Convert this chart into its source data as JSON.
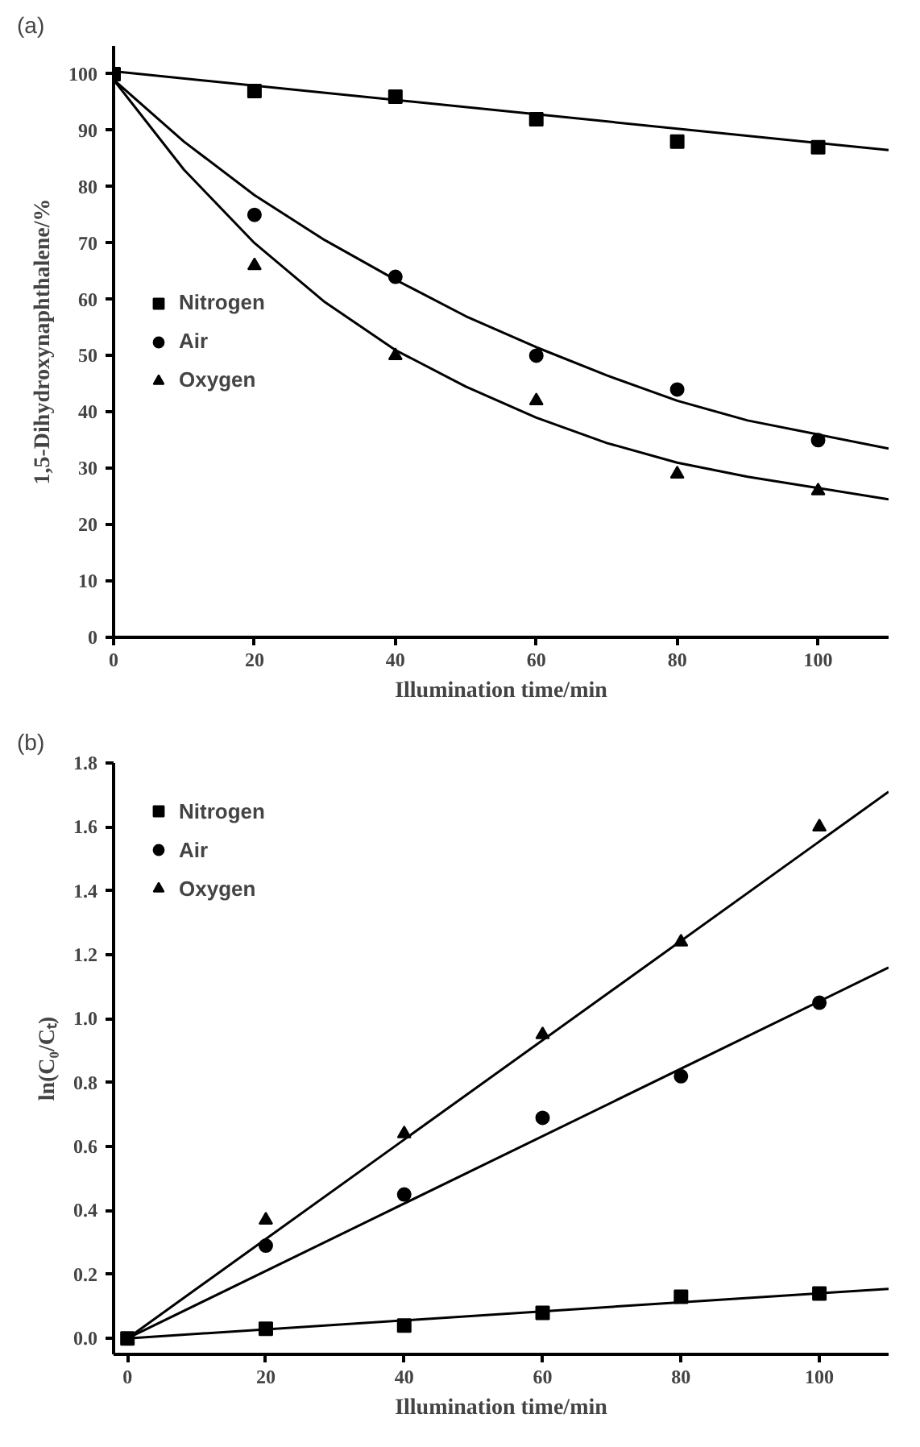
{
  "chart_data": [
    {
      "type": "scatter",
      "annotations": [
        "(a)"
      ],
      "xlabel": "Illumination time/min",
      "ylabel": "1,5-Dihydroxynaphthalene/%",
      "xlim": [
        0,
        110
      ],
      "ylim": [
        0,
        105
      ],
      "xticks": [
        0,
        20,
        40,
        60,
        80,
        100
      ],
      "yticks": [
        0,
        10,
        20,
        30,
        40,
        50,
        60,
        70,
        80,
        90,
        100
      ],
      "grid": false,
      "legend": "left",
      "series": [
        {
          "name": "Nitrogen",
          "color": "#000000",
          "marker": "square",
          "x": [
            0,
            20,
            40,
            60,
            80,
            100
          ],
          "values": [
            100,
            97,
            96,
            92,
            88,
            87
          ]
        },
        {
          "name": "Air",
          "color": "#000000",
          "marker": "circle",
          "x": [
            20,
            40,
            60,
            80,
            100
          ],
          "values": [
            75,
            64,
            50,
            44,
            35
          ]
        },
        {
          "name": "Oxygen",
          "color": "#000000",
          "marker": "triangle",
          "x": [
            20,
            40,
            60,
            80,
            100
          ],
          "values": [
            66,
            50,
            42,
            29,
            26
          ]
        },
        {
          "type": "line",
          "color": "#000000",
          "marker": "none",
          "x": [
            0,
            110
          ],
          "values": [
            100.5,
            86.5
          ]
        },
        {
          "type": "line",
          "color": "#000000",
          "marker": "none",
          "x": [
            0,
            10,
            20,
            30,
            40,
            50,
            60,
            70,
            80,
            90,
            100,
            110
          ],
          "values": [
            99,
            88,
            78.5,
            70.5,
            63.5,
            57,
            51.5,
            46.5,
            42,
            38.5,
            36,
            33.5
          ]
        },
        {
          "type": "line",
          "color": "#000000",
          "marker": "none",
          "x": [
            0,
            10,
            20,
            30,
            40,
            50,
            60,
            70,
            80,
            90,
            100,
            110
          ],
          "values": [
            99,
            83,
            70,
            59.5,
            51,
            44.5,
            39,
            34.5,
            31,
            28.5,
            26.5,
            24.5
          ]
        }
      ]
    },
    {
      "type": "scatter",
      "annotations": [
        "(b)"
      ],
      "xlabel": "Illumination time/min",
      "ylabel": "ln(C₀/Cₜ)",
      "xlim": [
        -2,
        110
      ],
      "ylim": [
        -0.05,
        1.8
      ],
      "xticks": [
        0,
        20,
        40,
        60,
        80,
        100
      ],
      "yticks": [
        {
          "value": 0,
          "label": "0.0"
        },
        0.2,
        0.4,
        0.6,
        0.8,
        {
          "value": 1,
          "label": "1.0"
        },
        1.2,
        1.4,
        1.6,
        1.8
      ],
      "grid": false,
      "legend": "top left",
      "series": [
        {
          "name": "Nitrogen",
          "color": "#000000",
          "marker": "square",
          "x": [
            0,
            20,
            40,
            60,
            80,
            100
          ],
          "values": [
            0,
            0.03,
            0.04,
            0.08,
            0.13,
            0.14
          ]
        },
        {
          "name": "Air",
          "color": "#000000",
          "marker": "circle",
          "x": [
            20,
            40,
            60,
            80,
            100
          ],
          "values": [
            0.29,
            0.45,
            0.69,
            0.82,
            1.05
          ]
        },
        {
          "name": "Oxygen",
          "color": "#000000",
          "marker": "triangle",
          "x": [
            20,
            40,
            60,
            80,
            100
          ],
          "values": [
            0.37,
            0.64,
            0.95,
            1.24,
            1.6
          ]
        },
        {
          "type": "line",
          "color": "#000000",
          "marker": "none",
          "x": [
            0,
            110
          ],
          "values": [
            0,
            0.155
          ]
        },
        {
          "type": "line",
          "color": "#000000",
          "marker": "none",
          "x": [
            0,
            110
          ],
          "values": [
            0,
            1.16
          ]
        },
        {
          "type": "line",
          "color": "#000000",
          "marker": "none",
          "x": [
            0,
            110
          ],
          "values": [
            0,
            1.71
          ]
        }
      ]
    }
  ]
}
